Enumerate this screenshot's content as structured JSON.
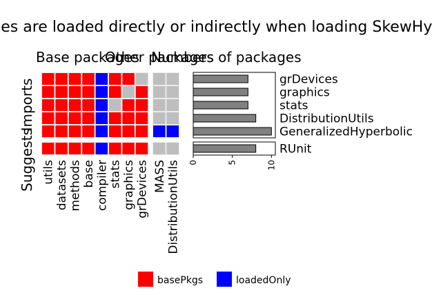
{
  "chart_data": {
    "type": "heatmap",
    "title": "Namespaces are loaded directly or indirectly when loading SkewHyperbolic",
    "panels": [
      {
        "title": "Base packages",
        "columns": [
          "utils",
          "datasets",
          "methods",
          "base",
          "compiler",
          "stats",
          "graphics",
          "grDevices"
        ],
        "row_groups": [
          "Imports",
          "Suggests"
        ],
        "cells": [
          [
            "basePkgs",
            "basePkgs",
            "basePkgs",
            "basePkgs",
            "loadedOnly",
            "basePkgs",
            "basePkgs",
            "none"
          ],
          [
            "basePkgs",
            "basePkgs",
            "basePkgs",
            "basePkgs",
            "loadedOnly",
            "basePkgs",
            "none",
            "basePkgs"
          ],
          [
            "basePkgs",
            "basePkgs",
            "basePkgs",
            "basePkgs",
            "loadedOnly",
            "none",
            "basePkgs",
            "basePkgs"
          ],
          [
            "basePkgs",
            "basePkgs",
            "basePkgs",
            "basePkgs",
            "loadedOnly",
            "basePkgs",
            "basePkgs",
            "basePkgs"
          ],
          [
            "basePkgs",
            "basePkgs",
            "basePkgs",
            "basePkgs",
            "loadedOnly",
            "basePkgs",
            "basePkgs",
            "basePkgs"
          ],
          [
            "basePkgs",
            "basePkgs",
            "basePkgs",
            "basePkgs",
            "loadedOnly",
            "basePkgs",
            "basePkgs",
            "basePkgs"
          ]
        ]
      },
      {
        "title": "Other packages",
        "columns": [
          "MASS",
          "DistributionUtils"
        ],
        "cells": [
          [
            "none",
            "none"
          ],
          [
            "none",
            "none"
          ],
          [
            "none",
            "none"
          ],
          [
            "none",
            "none"
          ],
          [
            "loadedOnly",
            "loadedOnly"
          ],
          [
            "none",
            "none"
          ]
        ]
      },
      {
        "title": "Numbers of packages",
        "type": "bar",
        "categories": [
          "grDevices",
          "graphics",
          "stats",
          "DistributionUtils",
          "GeneralizedHyperbolic",
          "RUnit"
        ],
        "values": [
          7,
          7,
          7,
          8,
          10,
          8
        ],
        "xlim": [
          0,
          10.5
        ],
        "xticks": [
          "0",
          "5",
          "10"
        ]
      }
    ],
    "row_groups": [
      {
        "name": "Imports",
        "rows": 5
      },
      {
        "name": "Suggests",
        "rows": 1
      }
    ],
    "legend": {
      "position": "bottom",
      "entries": [
        {
          "label": "basePkgs",
          "color": "#ff0000"
        },
        {
          "label": "loadedOnly",
          "color": "#0000ff"
        }
      ]
    },
    "colors": {
      "basePkgs": "#ff0000",
      "loadedOnly": "#0000ff",
      "none": "#bebebe",
      "bar": "#808080"
    }
  }
}
